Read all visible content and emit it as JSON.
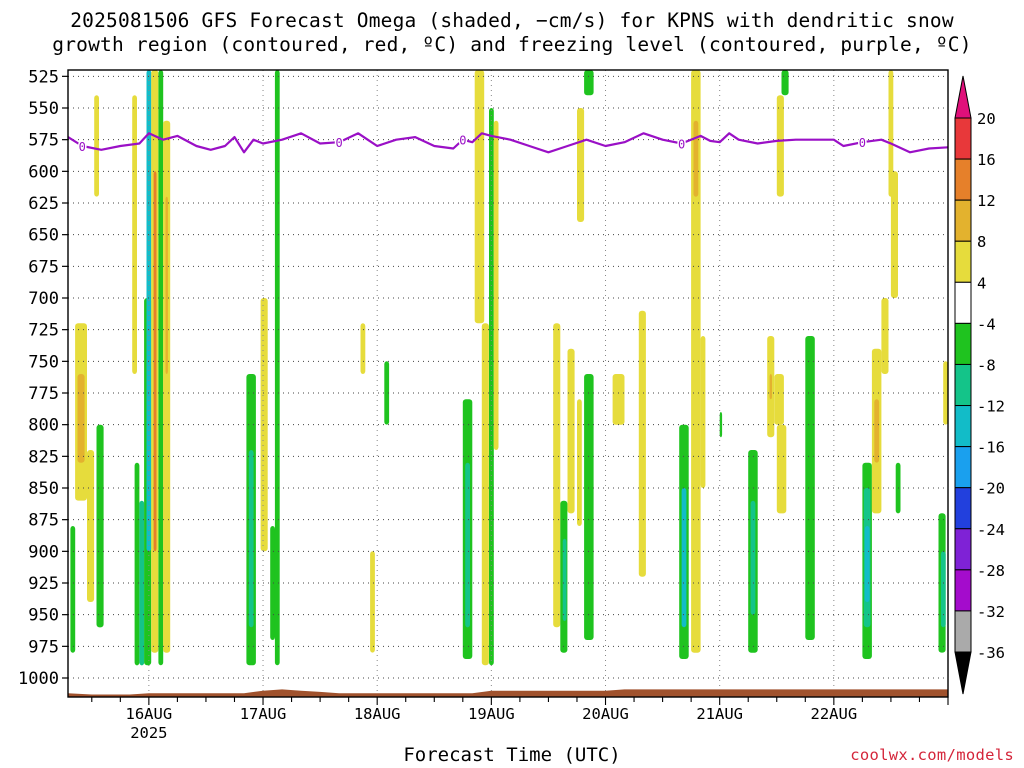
{
  "chart_data": {
    "type": "heatmap",
    "title": "2025081506 GFS Forecast Omega (shaded, −cm/s) for KPNS with dendritic snow",
    "subtitle": "growth region (contoured, red, ºC) and freezing level (contoured, purple, ºC)",
    "xlabel": "Forecast Time (UTC)",
    "ylabel": "",
    "y_scale": "pressure (hPa), reversed",
    "ylim": [
      1015,
      520
    ],
    "y_ticks": [
      525,
      550,
      575,
      600,
      625,
      650,
      675,
      700,
      725,
      750,
      775,
      800,
      825,
      850,
      875,
      900,
      925,
      950,
      975,
      1000
    ],
    "x_ticks": [
      "16AUG",
      "17AUG",
      "18AUG",
      "19AUG",
      "20AUG",
      "21AUG",
      "22AUG"
    ],
    "x_tick_sublabel": "2025",
    "x_start_hours": -17,
    "x_range_hours": [
      -17,
      168
    ],
    "grid": true,
    "colorbar_levels": [
      20,
      16,
      12,
      8,
      4,
      -4,
      -8,
      -12,
      -16,
      -20,
      -24,
      -28,
      -32,
      -36
    ],
    "colorbar_colors": [
      "#e0107a",
      "#e8383a",
      "#e6802a",
      "#e3b22e",
      "#e6dc3c",
      "#ffffff",
      "#1fc31f",
      "#14c489",
      "#12bcc8",
      "#1aa0ee",
      "#2240dd",
      "#7f22d6",
      "#a40ccc",
      "#aaaaaa",
      "#000000"
    ],
    "freezing_level_color": "#9a10c6",
    "freezing_level_label": "0",
    "freezing_level": {
      "hours": [
        -17,
        -14,
        -10,
        -6,
        -2,
        0,
        3,
        6,
        10,
        13,
        16,
        18,
        20,
        22,
        24,
        28,
        32,
        36,
        40,
        44,
        46,
        48,
        52,
        56,
        60,
        64,
        66,
        68,
        70,
        72,
        76,
        80,
        84,
        88,
        92,
        96,
        100,
        104,
        108,
        112,
        116,
        118,
        120,
        122,
        124,
        128,
        132,
        136,
        140,
        144,
        146,
        150,
        154,
        156,
        160,
        164,
        168
      ],
      "values": [
        573,
        580,
        583,
        580,
        578,
        570,
        575,
        572,
        580,
        583,
        580,
        573,
        585,
        575,
        578,
        575,
        570,
        578,
        577,
        570,
        575,
        580,
        575,
        573,
        580,
        582,
        575,
        577,
        570,
        572,
        575,
        580,
        585,
        580,
        575,
        580,
        577,
        570,
        575,
        578,
        572,
        576,
        577,
        570,
        575,
        578,
        576,
        575,
        575,
        575,
        580,
        577,
        575,
        578,
        585,
        582,
        581
      ]
    },
    "omega_cells": [
      {
        "t0": -15.5,
        "t1": -13.0,
        "p0": 720,
        "p1": 860,
        "v": 6
      },
      {
        "t0": -15.0,
        "t1": -13.5,
        "p0": 760,
        "p1": 830,
        "v": 10
      },
      {
        "t0": -13.0,
        "t1": -11.5,
        "p0": 820,
        "p1": 940,
        "v": 6
      },
      {
        "t0": -11.5,
        "t1": -10.5,
        "p0": 540,
        "p1": 620,
        "v": 6
      },
      {
        "t0": -11.0,
        "t1": -9.5,
        "p0": 800,
        "p1": 960,
        "v": -6
      },
      {
        "t0": -16.5,
        "t1": -15.5,
        "p0": 880,
        "p1": 980,
        "v": -6
      },
      {
        "t0": -3.5,
        "t1": -2.5,
        "p0": 540,
        "p1": 760,
        "v": 6
      },
      {
        "t0": -3.0,
        "t1": -2.0,
        "p0": 830,
        "p1": 990,
        "v": -6
      },
      {
        "t0": -2.0,
        "t1": -1.0,
        "p0": 860,
        "p1": 990,
        "v": -10
      },
      {
        "t0": -1.0,
        "t1": 0.5,
        "p0": 700,
        "p1": 990,
        "v": -6
      },
      {
        "t0": -0.5,
        "t1": 0.5,
        "p0": 520,
        "p1": 900,
        "v": -16
      },
      {
        "t0": 0.5,
        "t1": 2.0,
        "p0": 520,
        "p1": 980,
        "v": 6
      },
      {
        "t0": 1.0,
        "t1": 1.6,
        "p0": 600,
        "p1": 900,
        "v": 12
      },
      {
        "t0": 2.0,
        "t1": 3.0,
        "p0": 520,
        "p1": 990,
        "v": -6
      },
      {
        "t0": 3.0,
        "t1": 4.5,
        "p0": 560,
        "p1": 980,
        "v": 6
      },
      {
        "t0": 3.5,
        "t1": 4.0,
        "p0": 620,
        "p1": 760,
        "v": 10
      },
      {
        "t0": 20.5,
        "t1": 22.5,
        "p0": 760,
        "p1": 990,
        "v": -6
      },
      {
        "t0": 21.0,
        "t1": 22.0,
        "p0": 820,
        "p1": 960,
        "v": -12
      },
      {
        "t0": 23.5,
        "t1": 25.0,
        "p0": 700,
        "p1": 900,
        "v": 6
      },
      {
        "t0": 25.5,
        "t1": 26.5,
        "p0": 880,
        "p1": 970,
        "v": -6
      },
      {
        "t0": 26.5,
        "t1": 27.5,
        "p0": 520,
        "p1": 990,
        "v": -6
      },
      {
        "t0": 44.5,
        "t1": 45.5,
        "p0": 720,
        "p1": 760,
        "v": 6
      },
      {
        "t0": 46.5,
        "t1": 47.5,
        "p0": 900,
        "p1": 980,
        "v": 6
      },
      {
        "t0": 49.5,
        "t1": 50.5,
        "p0": 750,
        "p1": 800,
        "v": -6
      },
      {
        "t0": 66.0,
        "t1": 68.0,
        "p0": 780,
        "p1": 985,
        "v": -6
      },
      {
        "t0": 66.5,
        "t1": 67.5,
        "p0": 830,
        "p1": 960,
        "v": -12
      },
      {
        "t0": 68.5,
        "t1": 70.5,
        "p0": 520,
        "p1": 720,
        "v": 6
      },
      {
        "t0": 70.0,
        "t1": 71.5,
        "p0": 720,
        "p1": 990,
        "v": 6
      },
      {
        "t0": 71.5,
        "t1": 72.5,
        "p0": 550,
        "p1": 990,
        "v": -6
      },
      {
        "t0": 72.5,
        "t1": 73.5,
        "p0": 560,
        "p1": 820,
        "v": 6
      },
      {
        "t0": 85.0,
        "t1": 86.5,
        "p0": 720,
        "p1": 960,
        "v": 6
      },
      {
        "t0": 86.5,
        "t1": 88.0,
        "p0": 860,
        "p1": 980,
        "v": -6
      },
      {
        "t0": 87.0,
        "t1": 87.8,
        "p0": 890,
        "p1": 955,
        "v": -12
      },
      {
        "t0": 88.0,
        "t1": 89.5,
        "p0": 740,
        "p1": 870,
        "v": 6
      },
      {
        "t0": 90.0,
        "t1": 91.5,
        "p0": 550,
        "p1": 640,
        "v": 6
      },
      {
        "t0": 90.0,
        "t1": 91.0,
        "p0": 780,
        "p1": 880,
        "v": 6
      },
      {
        "t0": 91.5,
        "t1": 93.5,
        "p0": 520,
        "p1": 540,
        "v": -6
      },
      {
        "t0": 91.5,
        "t1": 93.5,
        "p0": 760,
        "p1": 970,
        "v": -6
      },
      {
        "t0": 97.5,
        "t1": 100.0,
        "p0": 760,
        "p1": 800,
        "v": 6
      },
      {
        "t0": 103.0,
        "t1": 104.5,
        "p0": 710,
        "p1": 920,
        "v": 6
      },
      {
        "t0": 111.5,
        "t1": 113.5,
        "p0": 800,
        "p1": 985,
        "v": -6
      },
      {
        "t0": 112.0,
        "t1": 113.0,
        "p0": 850,
        "p1": 960,
        "v": -14
      },
      {
        "t0": 114.0,
        "t1": 116.0,
        "p0": 520,
        "p1": 980,
        "v": 6
      },
      {
        "t0": 114.5,
        "t1": 115.5,
        "p0": 560,
        "p1": 620,
        "v": 10
      },
      {
        "t0": 116.0,
        "t1": 117.0,
        "p0": 730,
        "p1": 850,
        "v": 6
      },
      {
        "t0": 120.0,
        "t1": 120.5,
        "p0": 790,
        "p1": 810,
        "v": -6
      },
      {
        "t0": 126.0,
        "t1": 128.0,
        "p0": 820,
        "p1": 980,
        "v": -6
      },
      {
        "t0": 126.5,
        "t1": 127.5,
        "p0": 860,
        "p1": 950,
        "v": -12
      },
      {
        "t0": 130.0,
        "t1": 131.5,
        "p0": 730,
        "p1": 810,
        "v": 6
      },
      {
        "t0": 130.5,
        "t1": 131.0,
        "p0": 760,
        "p1": 780,
        "v": 10
      },
      {
        "t0": 131.5,
        "t1": 133.5,
        "p0": 760,
        "p1": 800,
        "v": 6
      },
      {
        "t0": 132.0,
        "t1": 133.5,
        "p0": 540,
        "p1": 620,
        "v": 6
      },
      {
        "t0": 132.0,
        "t1": 134.0,
        "p0": 800,
        "p1": 870,
        "v": 6
      },
      {
        "t0": 133.0,
        "t1": 134.5,
        "p0": 520,
        "p1": 540,
        "v": -6
      },
      {
        "t0": 138.0,
        "t1": 140.0,
        "p0": 730,
        "p1": 970,
        "v": -6
      },
      {
        "t0": 150.0,
        "t1": 152.0,
        "p0": 830,
        "p1": 985,
        "v": -6
      },
      {
        "t0": 150.3,
        "t1": 151.7,
        "p0": 850,
        "p1": 960,
        "v": -12
      },
      {
        "t0": 150.5,
        "t1": 151.5,
        "p0": 880,
        "p1": 940,
        "v": -16
      },
      {
        "t0": 152.0,
        "t1": 154.0,
        "p0": 740,
        "p1": 870,
        "v": 6
      },
      {
        "t0": 152.5,
        "t1": 153.5,
        "p0": 780,
        "p1": 830,
        "v": 10
      },
      {
        "t0": 154.0,
        "t1": 155.5,
        "p0": 700,
        "p1": 760,
        "v": 6
      },
      {
        "t0": 155.5,
        "t1": 156.5,
        "p0": 520,
        "p1": 620,
        "v": 6
      },
      {
        "t0": 156.0,
        "t1": 157.5,
        "p0": 600,
        "p1": 700,
        "v": 6
      },
      {
        "t0": 157.0,
        "t1": 158.0,
        "p0": 830,
        "p1": 870,
        "v": -6
      },
      {
        "t0": 166.0,
        "t1": 167.5,
        "p0": 870,
        "p1": 980,
        "v": -6
      },
      {
        "t0": 166.5,
        "t1": 167.5,
        "p0": 900,
        "p1": 960,
        "v": -10
      },
      {
        "t0": 167.0,
        "t1": 168.0,
        "p0": 750,
        "p1": 800,
        "v": 6
      }
    ],
    "terrain_color": "#a0522d",
    "terrain": {
      "hours": [
        -17,
        -12,
        -8,
        -4,
        0,
        4,
        8,
        12,
        16,
        20,
        24,
        28,
        32,
        36,
        40,
        44,
        48,
        52,
        56,
        60,
        64,
        68,
        72,
        76,
        80,
        84,
        88,
        92,
        96,
        100,
        104,
        108,
        112,
        116,
        120,
        124,
        128,
        132,
        136,
        140,
        144,
        148,
        152,
        156,
        160,
        164,
        168
      ],
      "values": [
        1012,
        1013,
        1013,
        1013,
        1012,
        1012,
        1012,
        1012,
        1012,
        1012,
        1010,
        1009,
        1010,
        1011,
        1012,
        1012,
        1012,
        1012,
        1012,
        1012,
        1012,
        1012,
        1010,
        1010,
        1010,
        1010,
        1010,
        1010,
        1010,
        1009,
        1009,
        1009,
        1009,
        1009,
        1009,
        1009,
        1009,
        1009,
        1009,
        1009,
        1009,
        1009,
        1009,
        1009,
        1009,
        1009,
        1009
      ]
    }
  },
  "credit": "coolwx.com/models"
}
